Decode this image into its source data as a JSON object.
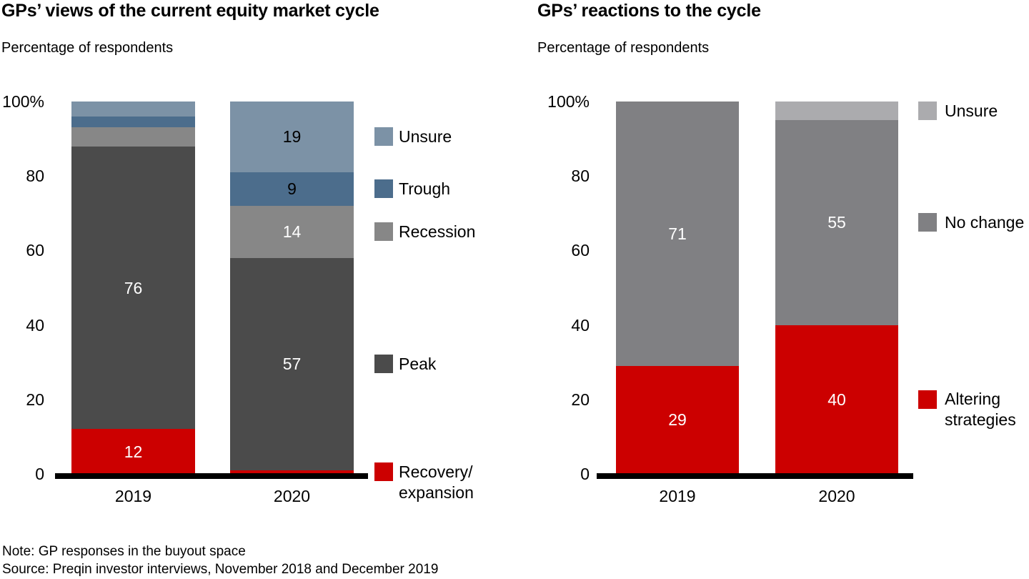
{
  "figure": {
    "note": "Note: GP responses in the buyout space",
    "source": "Source: Preqin investor interviews, November 2018 and December 2019"
  },
  "chart_data": [
    {
      "type": "bar",
      "stacked": true,
      "title": "GPs’ views of the current equity market cycle",
      "subtitle": "Percentage of respondents",
      "categories": [
        "2019",
        "2020"
      ],
      "ylim": [
        0,
        100
      ],
      "grid": false,
      "legend_position": "right",
      "yticks": [
        {
          "value": 100,
          "label": "100%"
        },
        {
          "value": 80,
          "label": "80"
        },
        {
          "value": 60,
          "label": "60"
        },
        {
          "value": 40,
          "label": "40"
        },
        {
          "value": 20,
          "label": "20"
        },
        {
          "value": 0,
          "label": "0"
        }
      ],
      "series": [
        {
          "name": "Recovery/expansion",
          "legend_label": "Recovery/\nexpansion",
          "color": "#CC0000",
          "values": [
            12,
            1
          ],
          "value_labels": [
            "12",
            null
          ],
          "value_label_colors": [
            "#FFFFFF",
            null
          ]
        },
        {
          "name": "Peak",
          "legend_label": "Peak",
          "color": "#4B4B4B",
          "values": [
            76,
            57
          ],
          "value_labels": [
            "76",
            "57"
          ],
          "value_label_colors": [
            "#FFFFFF",
            "#FFFFFF"
          ]
        },
        {
          "name": "Recession",
          "legend_label": "Recession",
          "color": "#878787",
          "values": [
            5,
            14
          ],
          "value_labels": [
            null,
            "14"
          ],
          "value_label_colors": [
            null,
            "#FFFFFF"
          ]
        },
        {
          "name": "Trough",
          "legend_label": "Trough",
          "color": "#4C6D8C",
          "values": [
            3,
            9
          ],
          "value_labels": [
            null,
            "9"
          ],
          "value_label_colors": [
            null,
            "#000000"
          ]
        },
        {
          "name": "Unsure",
          "legend_label": "Unsure",
          "color": "#7C92A6",
          "values": [
            4,
            19
          ],
          "value_labels": [
            null,
            "19"
          ],
          "value_label_colors": [
            null,
            "#000000"
          ]
        }
      ]
    },
    {
      "type": "bar",
      "stacked": true,
      "title": "GPs’ reactions to the cycle",
      "subtitle": "Percentage of respondents",
      "categories": [
        "2019",
        "2020"
      ],
      "ylim": [
        0,
        100
      ],
      "grid": false,
      "legend_position": "right",
      "yticks": [
        {
          "value": 100,
          "label": "100%"
        },
        {
          "value": 80,
          "label": "80"
        },
        {
          "value": 60,
          "label": "60"
        },
        {
          "value": 40,
          "label": "40"
        },
        {
          "value": 20,
          "label": "20"
        },
        {
          "value": 0,
          "label": "0"
        }
      ],
      "series": [
        {
          "name": "Altering strategies",
          "legend_label": "Altering\nstrategies",
          "color": "#CC0000",
          "values": [
            29,
            40
          ],
          "value_labels": [
            "29",
            "40"
          ],
          "value_label_colors": [
            "#FFFFFF",
            "#FFFFFF"
          ]
        },
        {
          "name": "No change",
          "legend_label": "No change",
          "color": "#808083",
          "values": [
            71,
            55
          ],
          "value_labels": [
            "71",
            "55"
          ],
          "value_label_colors": [
            "#FFFFFF",
            "#FFFFFF"
          ]
        },
        {
          "name": "Unsure",
          "legend_label": "Unsure",
          "color": "#ABABAE",
          "values": [
            0,
            5
          ],
          "value_labels": [
            null,
            null
          ],
          "value_label_colors": [
            null,
            null
          ]
        }
      ]
    }
  ]
}
